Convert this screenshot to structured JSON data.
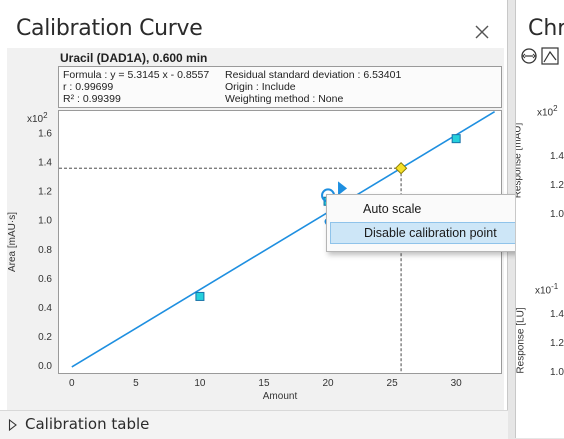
{
  "panel": {
    "title": "Calibration Curve",
    "compound": "Uracil (DAD1A), 0.600 min",
    "info": {
      "formula": "Formula : y = 5.3145 x - 0.8557",
      "r": "r : 0.99699",
      "r2": "R² : 0.99399",
      "rsd": "Residual standard deviation : 6.53401",
      "origin": "Origin : Include",
      "weighting": "Weighting method : None"
    },
    "footer_label": "Calibration table"
  },
  "context_menu": {
    "items": [
      "Auto scale",
      "Disable calibration point"
    ],
    "selected_index": 1
  },
  "right_panel": {
    "title": "Chro",
    "exp1": "x10",
    "exp1_pow": "2",
    "ylabel1": "Response [mAU]",
    "ticks1": [
      "1.4",
      "1.2",
      "1.0"
    ],
    "exp2": "x10",
    "exp2_pow": "-1",
    "ylabel2": "Response [LU]",
    "ticks2": [
      "1.4",
      "1.2",
      "1.0"
    ]
  },
  "chart_data": {
    "type": "scatter",
    "xlabel": "Amount",
    "ylabel": "Area [mAU·s]",
    "y_multiplier": "x10",
    "y_multiplier_pow": "2",
    "xlim": [
      -1,
      33.5
    ],
    "ylim": [
      -0.05,
      1.75
    ],
    "x_ticks": [
      0,
      5,
      10,
      15,
      20,
      25,
      30
    ],
    "x_tick_labels": [
      "0",
      "5",
      "10",
      "15",
      "20",
      "25",
      "30"
    ],
    "y_ticks": [
      0.0,
      0.2,
      0.4,
      0.6,
      0.8,
      1.0,
      1.2,
      1.4,
      1.6
    ],
    "y_tick_labels": [
      "0.0",
      "0.2",
      "0.4",
      "0.6",
      "0.8",
      "1.0",
      "1.2",
      "1.4",
      "1.6"
    ],
    "fit_line": {
      "slope": 0.053145,
      "intercept": -0.008557
    },
    "points": [
      {
        "x": 10,
        "y": 0.476
      },
      {
        "x": 20,
        "y": 1.13
      },
      {
        "x": 30,
        "y": 1.56
      }
    ],
    "hidden_point": {
      "x": 20,
      "y": 0.99
    },
    "highlighted_point": {
      "x": 20,
      "y": 1.17
    },
    "cursor_point": {
      "x": 25.7,
      "y": 1.357
    },
    "colors": {
      "line": "#1e8fe0",
      "point_fill": "#25d0dc",
      "cursor_fill": "#f4e02a"
    }
  }
}
